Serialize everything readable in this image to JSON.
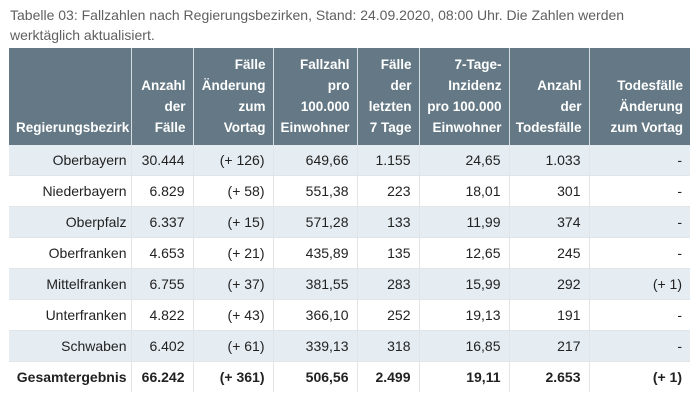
{
  "caption": "Tabelle 03: Fallzahlen nach Regierungsbezirken, Stand: 24.09.2020, 08:00 Uhr. Die Zahlen werden werktäglich aktualisiert.",
  "table": {
    "headers": [
      "Regierungsbezirk",
      "Anzahl der Fälle",
      "Fälle Änderung zum Vortag",
      "Fallzahl pro 100.000 Einwohner",
      "Fälle der letzten 7 Tage",
      "7-Tage-Inzidenz pro 100.000 Einwohner",
      "Anzahl der Todesfälle",
      "Todesfälle Änderung zum Vortag"
    ],
    "rows": [
      [
        "Oberbayern",
        "30.444",
        "(+ 126)",
        "649,66",
        "1.155",
        "24,65",
        "1.033",
        "-"
      ],
      [
        "Niederbayern",
        "6.829",
        "(+ 58)",
        "551,38",
        "223",
        "18,01",
        "301",
        "-"
      ],
      [
        "Oberpfalz",
        "6.337",
        "(+ 15)",
        "571,28",
        "133",
        "11,99",
        "374",
        "-"
      ],
      [
        "Oberfranken",
        "4.653",
        "(+ 21)",
        "435,89",
        "135",
        "12,65",
        "245",
        "-"
      ],
      [
        "Mittelfranken",
        "6.755",
        "(+ 37)",
        "381,55",
        "283",
        "15,99",
        "292",
        "(+ 1)"
      ],
      [
        "Unterfranken",
        "4.822",
        "(+ 43)",
        "366,10",
        "252",
        "19,13",
        "191",
        "-"
      ],
      [
        "Schwaben",
        "6.402",
        "(+ 61)",
        "339,13",
        "318",
        "16,85",
        "217",
        "-"
      ]
    ],
    "total": [
      "Gesamtergebnis",
      "66.242",
      "(+ 361)",
      "506,56",
      "2.499",
      "19,11",
      "2.653",
      "(+ 1)"
    ]
  },
  "colors": {
    "header_bg": "#647985",
    "row_stripe": "#e5ecf2"
  }
}
